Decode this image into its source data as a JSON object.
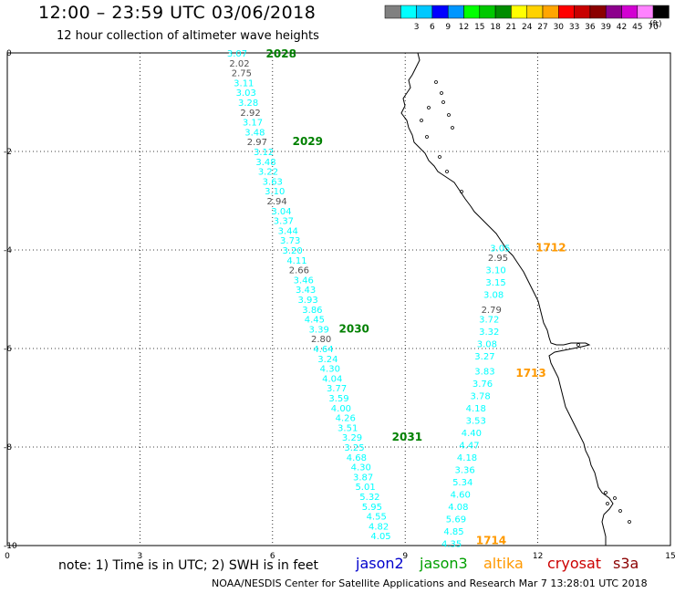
{
  "header": {
    "title": "12:00 – 23:59 UTC 03/06/2018",
    "subtitle": "12 hour collection of altimeter wave heights"
  },
  "legend": {
    "unit": "(ft)",
    "items": [
      {
        "color": "#808080",
        "label": ""
      },
      {
        "color": "#00ffff",
        "label": "3"
      },
      {
        "color": "#00c8ff",
        "label": "6"
      },
      {
        "color": "#0000ff",
        "label": "9"
      },
      {
        "color": "#0096ff",
        "label": "12"
      },
      {
        "color": "#00ff00",
        "label": "15"
      },
      {
        "color": "#00c800",
        "label": "18"
      },
      {
        "color": "#008c00",
        "label": "21"
      },
      {
        "color": "#ffff00",
        "label": "24"
      },
      {
        "color": "#ffd200",
        "label": "27"
      },
      {
        "color": "#ffa500",
        "label": "30"
      },
      {
        "color": "#ff0000",
        "label": "33"
      },
      {
        "color": "#c80000",
        "label": "36"
      },
      {
        "color": "#8b0000",
        "label": "39"
      },
      {
        "color": "#8c008c",
        "label": "42"
      },
      {
        "color": "#d200d2",
        "label": "45"
      },
      {
        "color": "#ff82ff",
        "label": "70"
      },
      {
        "color": "#000000",
        "label": ""
      }
    ]
  },
  "axes": {
    "x_ticks": [
      0,
      3,
      6,
      9,
      12,
      15
    ],
    "y_ticks": [
      0,
      -2,
      -4,
      -6,
      -8,
      -10
    ],
    "x_range": [
      0,
      15
    ],
    "y_range": [
      -10,
      0
    ]
  },
  "tracks": [
    {
      "satellite": "jason3",
      "color": "#00ffff",
      "labels": [
        {
          "text": "2028",
          "lon": 5.85,
          "lat": -0.02
        },
        {
          "text": "2029",
          "lon": 6.45,
          "lat": -1.8
        },
        {
          "text": "2030",
          "lon": 7.5,
          "lat": -5.6
        },
        {
          "text": "2031",
          "lon": 8.7,
          "lat": -7.8
        }
      ],
      "points": [
        {
          "v": "3.07",
          "g": false,
          "lon": 5.2,
          "lat": 0.0
        },
        {
          "v": "2.02",
          "g": true,
          "lon": 5.25,
          "lat": -0.2
        },
        {
          "v": "2.75",
          "g": true,
          "lon": 5.3,
          "lat": -0.4
        },
        {
          "v": "3.11",
          "g": false,
          "lon": 5.35,
          "lat": -0.6
        },
        {
          "v": "3.03",
          "g": false,
          "lon": 5.4,
          "lat": -0.8
        },
        {
          "v": "3.28",
          "g": false,
          "lon": 5.45,
          "lat": -1.0
        },
        {
          "v": "2.92",
          "g": true,
          "lon": 5.5,
          "lat": -1.2
        },
        {
          "v": "3.17",
          "g": false,
          "lon": 5.55,
          "lat": -1.4
        },
        {
          "v": "3.48",
          "g": false,
          "lon": 5.6,
          "lat": -1.6
        },
        {
          "v": "2.97",
          "g": true,
          "lon": 5.65,
          "lat": -1.8
        },
        {
          "v": "3.12",
          "g": false,
          "lon": 5.8,
          "lat": -2.0
        },
        {
          "v": "3.48",
          "g": false,
          "lon": 5.85,
          "lat": -2.2
        },
        {
          "v": "3.22",
          "g": false,
          "lon": 5.9,
          "lat": -2.4
        },
        {
          "v": "3.63",
          "g": false,
          "lon": 6.0,
          "lat": -2.6
        },
        {
          "v": "3.10",
          "g": false,
          "lon": 6.05,
          "lat": -2.8
        },
        {
          "v": "2.94",
          "g": true,
          "lon": 6.1,
          "lat": -3.0
        },
        {
          "v": "3.04",
          "g": false,
          "lon": 6.2,
          "lat": -3.2
        },
        {
          "v": "3.37",
          "g": false,
          "lon": 6.25,
          "lat": -3.4
        },
        {
          "v": "3.44",
          "g": false,
          "lon": 6.35,
          "lat": -3.6
        },
        {
          "v": "3.73",
          "g": false,
          "lon": 6.4,
          "lat": -3.8
        },
        {
          "v": "3.20",
          "g": false,
          "lon": 6.45,
          "lat": -4.0
        },
        {
          "v": "4.11",
          "g": false,
          "lon": 6.55,
          "lat": -4.2
        },
        {
          "v": "2.66",
          "g": true,
          "lon": 6.6,
          "lat": -4.4
        },
        {
          "v": "3.46",
          "g": false,
          "lon": 6.7,
          "lat": -4.6
        },
        {
          "v": "3.43",
          "g": false,
          "lon": 6.75,
          "lat": -4.8
        },
        {
          "v": "3.93",
          "g": false,
          "lon": 6.8,
          "lat": -5.0
        },
        {
          "v": "3.86",
          "g": false,
          "lon": 6.9,
          "lat": -5.2
        },
        {
          "v": "4.45",
          "g": false,
          "lon": 6.95,
          "lat": -5.4
        },
        {
          "v": "3.39",
          "g": false,
          "lon": 7.05,
          "lat": -5.6
        },
        {
          "v": "2.80",
          "g": true,
          "lon": 7.1,
          "lat": -5.8
        },
        {
          "v": "4.64",
          "g": false,
          "lon": 7.15,
          "lat": -6.0
        },
        {
          "v": "3.24",
          "g": false,
          "lon": 7.25,
          "lat": -6.2
        },
        {
          "v": "4.30",
          "g": false,
          "lon": 7.3,
          "lat": -6.4
        },
        {
          "v": "4.04",
          "g": false,
          "lon": 7.35,
          "lat": -6.6
        },
        {
          "v": "3.77",
          "g": false,
          "lon": 7.45,
          "lat": -6.8
        },
        {
          "v": "3.59",
          "g": false,
          "lon": 7.5,
          "lat": -7.0
        },
        {
          "v": "4.00",
          "g": false,
          "lon": 7.55,
          "lat": -7.2
        },
        {
          "v": "4.26",
          "g": false,
          "lon": 7.65,
          "lat": -7.4
        },
        {
          "v": "3.51",
          "g": false,
          "lon": 7.7,
          "lat": -7.6
        },
        {
          "v": "3.29",
          "g": false,
          "lon": 7.8,
          "lat": -7.8
        },
        {
          "v": "3.25",
          "g": false,
          "lon": 7.85,
          "lat": -8.0
        },
        {
          "v": "4.68",
          "g": false,
          "lon": 7.9,
          "lat": -8.2
        },
        {
          "v": "4.30",
          "g": false,
          "lon": 8.0,
          "lat": -8.4
        },
        {
          "v": "3.87",
          "g": false,
          "lon": 8.05,
          "lat": -8.6
        },
        {
          "v": "5.01",
          "g": false,
          "lon": 8.1,
          "lat": -8.8
        },
        {
          "v": "5.32",
          "g": false,
          "lon": 8.2,
          "lat": -9.0
        },
        {
          "v": "5.95",
          "g": false,
          "lon": 8.25,
          "lat": -9.2
        },
        {
          "v": "4.55",
          "g": false,
          "lon": 8.35,
          "lat": -9.4
        },
        {
          "v": "4.82",
          "g": false,
          "lon": 8.4,
          "lat": -9.6
        },
        {
          "v": "4.05",
          "g": false,
          "lon": 8.45,
          "lat": -9.8
        }
      ]
    },
    {
      "satellite": "altika",
      "color": "#00ffff",
      "labels": [
        {
          "text": "1712",
          "lon": 11.95,
          "lat": -3.95
        },
        {
          "text": "1713",
          "lon": 11.5,
          "lat": -6.5
        },
        {
          "text": "1714",
          "lon": 10.6,
          "lat": -9.9
        }
      ],
      "points": [
        {
          "v": "3.05",
          "g": false,
          "lon": 11.15,
          "lat": -3.95
        },
        {
          "v": "2.95",
          "g": true,
          "lon": 11.1,
          "lat": -4.15
        },
        {
          "v": "3.10",
          "g": false,
          "lon": 11.05,
          "lat": -4.4
        },
        {
          "v": "3.15",
          "g": false,
          "lon": 11.05,
          "lat": -4.65
        },
        {
          "v": "3.08",
          "g": false,
          "lon": 11.0,
          "lat": -4.9
        },
        {
          "v": "2.79",
          "g": true,
          "lon": 10.95,
          "lat": -5.2
        },
        {
          "v": "3.72",
          "g": false,
          "lon": 10.9,
          "lat": -5.4
        },
        {
          "v": "3.32",
          "g": false,
          "lon": 10.9,
          "lat": -5.65
        },
        {
          "v": "3.08",
          "g": false,
          "lon": 10.85,
          "lat": -5.9
        },
        {
          "v": "3.27",
          "g": false,
          "lon": 10.8,
          "lat": -6.15
        },
        {
          "v": "3.83",
          "g": false,
          "lon": 10.8,
          "lat": -6.45
        },
        {
          "v": "3.76",
          "g": false,
          "lon": 10.75,
          "lat": -6.7
        },
        {
          "v": "3.78",
          "g": false,
          "lon": 10.7,
          "lat": -6.95
        },
        {
          "v": "4.18",
          "g": false,
          "lon": 10.6,
          "lat": -7.2
        },
        {
          "v": "3.53",
          "g": false,
          "lon": 10.6,
          "lat": -7.45
        },
        {
          "v": "4.40",
          "g": false,
          "lon": 10.5,
          "lat": -7.7
        },
        {
          "v": "4.47",
          "g": false,
          "lon": 10.45,
          "lat": -7.95
        },
        {
          "v": "4.18",
          "g": false,
          "lon": 10.4,
          "lat": -8.2
        },
        {
          "v": "3.36",
          "g": false,
          "lon": 10.35,
          "lat": -8.45
        },
        {
          "v": "5.34",
          "g": false,
          "lon": 10.3,
          "lat": -8.7
        },
        {
          "v": "4.60",
          "g": false,
          "lon": 10.25,
          "lat": -8.95
        },
        {
          "v": "4.08",
          "g": false,
          "lon": 10.2,
          "lat": -9.2
        },
        {
          "v": "5.69",
          "g": false,
          "lon": 10.15,
          "lat": -9.45
        },
        {
          "v": "4.85",
          "g": false,
          "lon": 10.1,
          "lat": -9.7
        },
        {
          "v": "4.35",
          "g": false,
          "lon": 10.05,
          "lat": -9.95
        }
      ]
    }
  ],
  "footer": {
    "note": "note: 1) Time is in UTC; 2) SWH is in feet",
    "satellites": [
      {
        "name": "jason2",
        "color": "#0000cc"
      },
      {
        "name": "jason3",
        "color": "#00a000"
      },
      {
        "name": "altika",
        "color": "#ff9900"
      },
      {
        "name": "cryosat",
        "color": "#cc0000"
      },
      {
        "name": "s3a",
        "color": "#8b0000"
      }
    ],
    "credit": "NOAA/NESDIS Center for Satellite Applications and Research    Mar  7 13:28:01 UTC 2018"
  },
  "colors": {
    "gray_value": "#505050",
    "jason3_label": "#008000",
    "altika_label": "#ff9900",
    "coast": "#000000",
    "grid": "#000000"
  }
}
